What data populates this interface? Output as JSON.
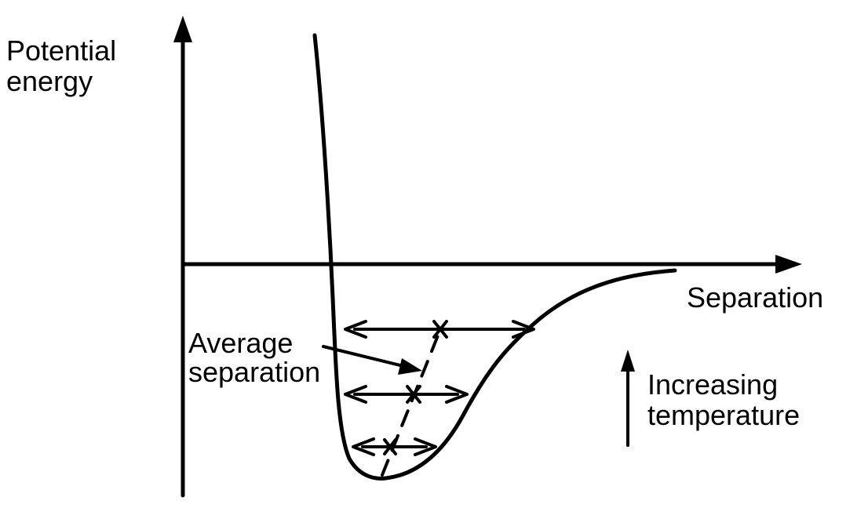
{
  "labels": {
    "y_axis_line1": "Potential",
    "y_axis_line2": "energy",
    "x_axis": "Separation",
    "average_line1": "Average",
    "average_line2": "separation",
    "temperature_line1": "Increasing",
    "temperature_line2": "temperature"
  },
  "colors": {
    "ink": "#000000",
    "background": "#ffffff"
  },
  "icons": {
    "average_marker": "x-mark-icon",
    "temperature_direction": "arrow-up-icon"
  }
}
